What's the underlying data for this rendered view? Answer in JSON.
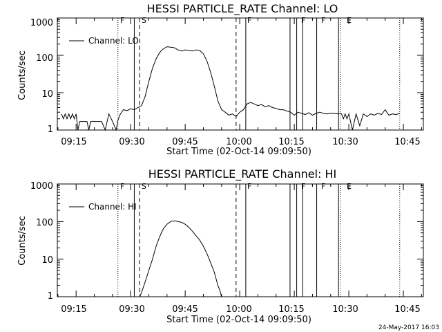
{
  "chart_data": [
    {
      "type": "line",
      "title": "HESSI PARTICLE_RATE Channel: LO",
      "xlabel": "Start Time (02-Oct-14 09:09:50)",
      "ylabel": "Counts/sec",
      "yscale": "log",
      "ylim": [
        1,
        1000
      ],
      "xlim": [
        "09:09:50",
        "10:50:30"
      ],
      "ytick_labels": [
        "1",
        "10",
        "100",
        "1000"
      ],
      "xtick_labels": [
        "09:15",
        "09:30",
        "09:45",
        "10:00",
        "10:15",
        "10:30",
        "10:45"
      ],
      "legend": {
        "label": "Channel: LO",
        "placement": "top-left"
      },
      "markers": [
        {
          "label": "F",
          "time": "09:26:30",
          "style": "dotted"
        },
        {
          "label": "",
          "time": "09:31:00",
          "style": "solid"
        },
        {
          "label": "S",
          "time": "09:32:30",
          "style": "dashed"
        },
        {
          "label": "",
          "time": "09:59:00",
          "style": "dashed"
        },
        {
          "label": "F",
          "time": "10:01:40",
          "style": "solid"
        },
        {
          "label": "",
          "time": "10:13:50",
          "style": "solid"
        },
        {
          "label": "F",
          "time": "10:15:40",
          "style": "solid"
        },
        {
          "label": "",
          "time": "10:17:20",
          "style": "solid"
        },
        {
          "label": "F",
          "time": "10:21:10",
          "style": "solid"
        },
        {
          "label": "",
          "time": "10:27:10",
          "style": "solid"
        },
        {
          "label": "E",
          "time": "10:27:40",
          "style": "dotted"
        },
        {
          "label": "",
          "time": "10:44:00",
          "style": "dotted"
        }
      ],
      "series": [
        {
          "name": "Channel: LO",
          "x": [
            "09:11:00",
            "09:11:30",
            "09:12:00",
            "09:12:30",
            "09:13:00",
            "09:13:30",
            "09:14:00",
            "09:14:30",
            "09:15:00",
            "09:15:30",
            "09:16:00",
            "09:16:30",
            "09:17:00",
            "09:17:30",
            "09:18:00",
            "09:18:30",
            "09:19:00",
            "09:20:00",
            "09:21:00",
            "09:22:00",
            "09:23:00",
            "09:24:00",
            "09:25:00",
            "09:26:00",
            "09:26:30",
            "09:27:00",
            "09:28:00",
            "09:29:00",
            "09:30:00",
            "09:31:00",
            "09:32:00",
            "09:33:00",
            "09:34:00",
            "09:35:00",
            "09:36:00",
            "09:37:00",
            "09:38:00",
            "09:39:00",
            "09:40:00",
            "09:41:00",
            "09:42:00",
            "09:43:00",
            "09:44:00",
            "09:45:00",
            "09:46:00",
            "09:47:00",
            "09:48:00",
            "09:49:00",
            "09:50:00",
            "09:51:00",
            "09:52:00",
            "09:53:00",
            "09:54:00",
            "09:55:00",
            "09:56:00",
            "09:57:00",
            "09:58:00",
            "09:59:00",
            "10:00:00",
            "10:01:00",
            "10:02:00",
            "10:03:00",
            "10:04:00",
            "10:05:00",
            "10:06:00",
            "10:07:00",
            "10:08:00",
            "10:09:00",
            "10:10:00",
            "10:11:00",
            "10:12:00",
            "10:13:00",
            "10:14:00",
            "10:15:00",
            "10:16:00",
            "10:17:00",
            "10:18:00",
            "10:19:00",
            "10:20:00",
            "10:21:00",
            "10:22:00",
            "10:23:00",
            "10:24:00",
            "10:25:00",
            "10:26:00",
            "10:27:00",
            "10:27:30",
            "10:28:00",
            "10:28:30",
            "10:29:00",
            "10:29:30",
            "10:30:00",
            "10:31:00",
            "10:32:00",
            "10:33:00",
            "10:34:00",
            "10:35:00",
            "10:36:00",
            "10:37:00",
            "10:38:00",
            "10:39:00",
            "10:40:00",
            "10:41:00",
            "10:42:00",
            "10:43:00",
            "10:44:00"
          ],
          "values": [
            2.7,
            2.0,
            2.7,
            2.0,
            2.7,
            2.0,
            2.7,
            2.0,
            2.7,
            1.0,
            1.7,
            1.7,
            1.7,
            1.7,
            1.7,
            1.0,
            1.7,
            1.7,
            1.7,
            1.7,
            1.0,
            2.7,
            1.7,
            1.0,
            1.8,
            2.5,
            3.5,
            3.3,
            3.7,
            3.5,
            4.0,
            4.5,
            8,
            20,
            45,
            80,
            120,
            150,
            170,
            165,
            160,
            140,
            130,
            140,
            135,
            130,
            140,
            135,
            110,
            70,
            35,
            15,
            6,
            3.5,
            3.0,
            2.5,
            2.7,
            2.3,
            3.0,
            3.5,
            5.0,
            5.5,
            5.0,
            4.5,
            4.8,
            4.2,
            4.5,
            4.0,
            3.8,
            3.5,
            3.5,
            3.2,
            3.0,
            2.5,
            3.0,
            2.8,
            2.6,
            2.9,
            2.5,
            2.8,
            3.0,
            2.8,
            2.7,
            2.8,
            2.8,
            2.7,
            2.8,
            2.7,
            2.0,
            2.7,
            2.0,
            2.7,
            1.0,
            2.7,
            1.3,
            2.7,
            2.3,
            2.7,
            2.5,
            2.8,
            2.6,
            3.5,
            2.5,
            2.7,
            2.6,
            2.8
          ]
        }
      ]
    },
    {
      "type": "line",
      "title": "HESSI PARTICLE_RATE Channel: HI",
      "xlabel": "Start Time (02-Oct-14 09:09:50)",
      "ylabel": "Counts/sec",
      "yscale": "log",
      "ylim": [
        1,
        1000
      ],
      "xlim": [
        "09:09:50",
        "10:50:30"
      ],
      "ytick_labels": [
        "1",
        "10",
        "100",
        "1000"
      ],
      "xtick_labels": [
        "09:15",
        "09:30",
        "09:45",
        "10:00",
        "10:15",
        "10:30",
        "10:45"
      ],
      "legend": {
        "label": "Channel: HI",
        "placement": "top-left"
      },
      "markers": [
        {
          "label": "F",
          "time": "09:26:30",
          "style": "dotted"
        },
        {
          "label": "",
          "time": "09:31:00",
          "style": "solid"
        },
        {
          "label": "S",
          "time": "09:32:30",
          "style": "dashed"
        },
        {
          "label": "",
          "time": "09:59:00",
          "style": "dashed"
        },
        {
          "label": "F",
          "time": "10:01:40",
          "style": "solid"
        },
        {
          "label": "",
          "time": "10:13:50",
          "style": "solid"
        },
        {
          "label": "F",
          "time": "10:15:40",
          "style": "solid"
        },
        {
          "label": "",
          "time": "10:17:20",
          "style": "solid"
        },
        {
          "label": "F",
          "time": "10:21:10",
          "style": "solid"
        },
        {
          "label": "",
          "time": "10:27:10",
          "style": "solid"
        },
        {
          "label": "E",
          "time": "10:27:40",
          "style": "dotted"
        },
        {
          "label": "",
          "time": "10:44:00",
          "style": "dotted"
        }
      ],
      "series": [
        {
          "name": "Channel: HI",
          "x": [
            "09:32:30",
            "09:33:00",
            "09:34:00",
            "09:35:00",
            "09:36:00",
            "09:37:00",
            "09:38:00",
            "09:39:00",
            "09:40:00",
            "09:41:00",
            "09:42:00",
            "09:43:00",
            "09:44:00",
            "09:45:00",
            "09:46:00",
            "09:47:00",
            "09:48:00",
            "09:49:00",
            "09:50:00",
            "09:51:00",
            "09:52:00",
            "09:53:00",
            "09:53:30",
            "09:54:00",
            "09:54:30",
            "09:55:00"
          ],
          "values": [
            1.0,
            1.3,
            2.5,
            5,
            10,
            22,
            40,
            65,
            85,
            100,
            105,
            100,
            95,
            85,
            70,
            55,
            42,
            32,
            22,
            14,
            8,
            4.5,
            3,
            2,
            1.5,
            1.0
          ]
        }
      ]
    }
  ],
  "footer": {
    "timestamp": "24-May-2017 16:03"
  }
}
